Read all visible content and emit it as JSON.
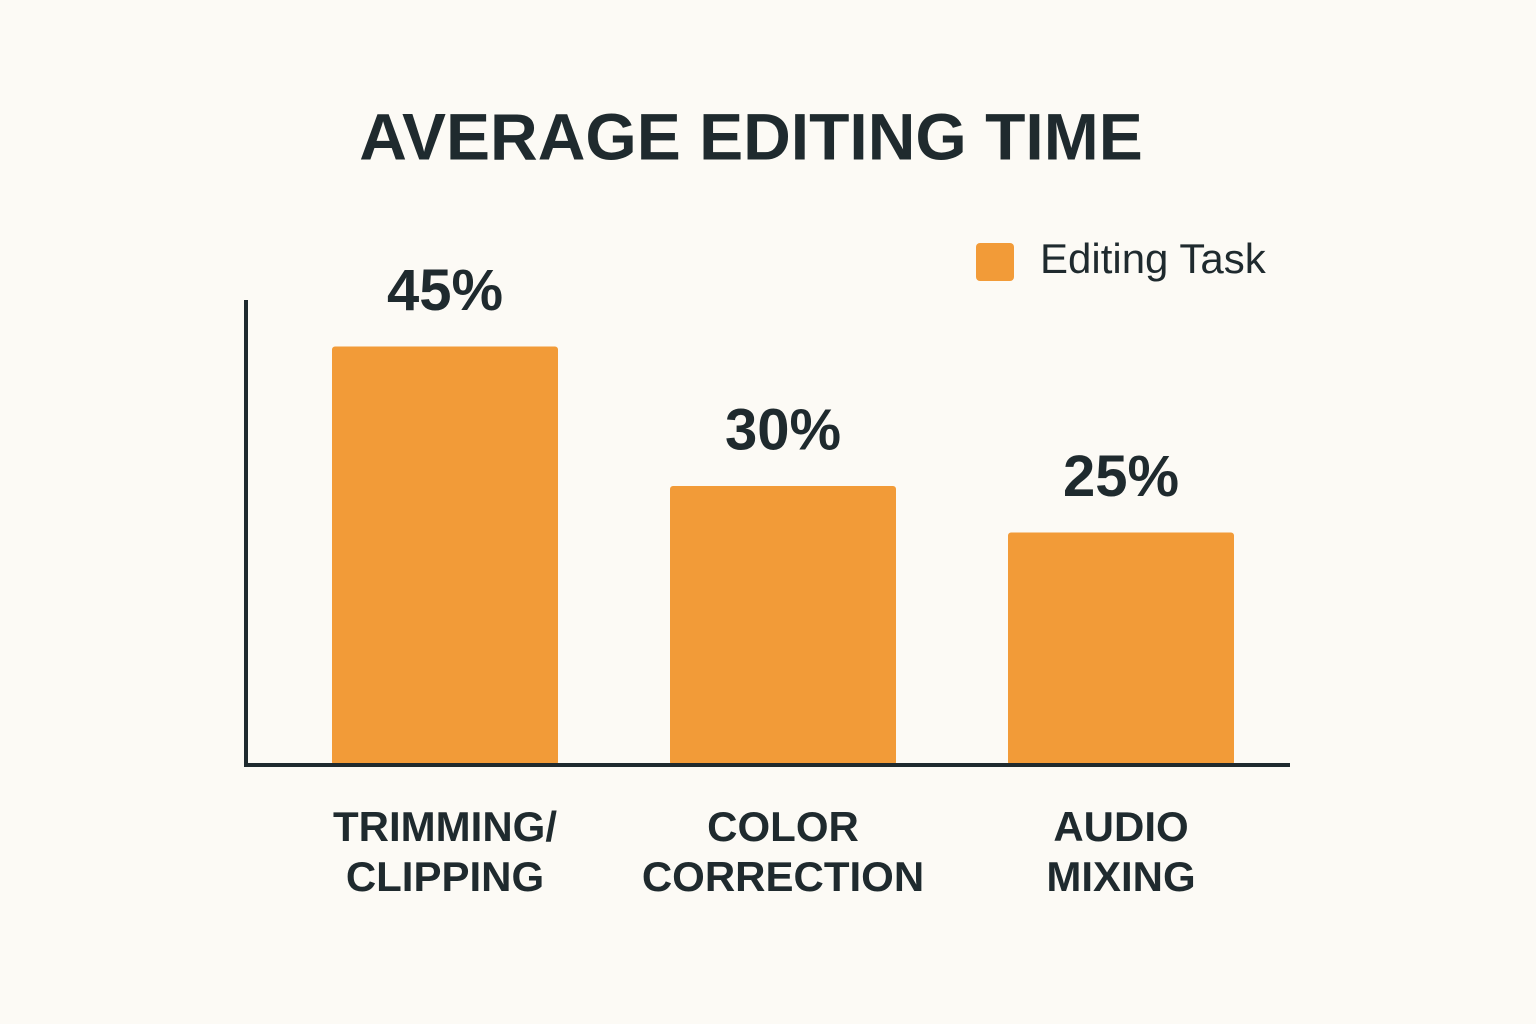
{
  "chart_data": {
    "type": "bar",
    "title": "AVERAGE EDITING TIME",
    "categories": [
      [
        "TRIMMING/",
        "CLIPPING"
      ],
      [
        "COLOR",
        "CORRECTION"
      ],
      [
        "AUDIO",
        "MIXING"
      ]
    ],
    "series": [
      {
        "name": "Editing Task",
        "color": "#f29b38",
        "values": [
          45,
          30,
          25
        ],
        "value_labels": [
          "45%",
          "30%",
          "25%"
        ]
      }
    ],
    "ylim": [
      0,
      50
    ],
    "legend": "upper right"
  }
}
